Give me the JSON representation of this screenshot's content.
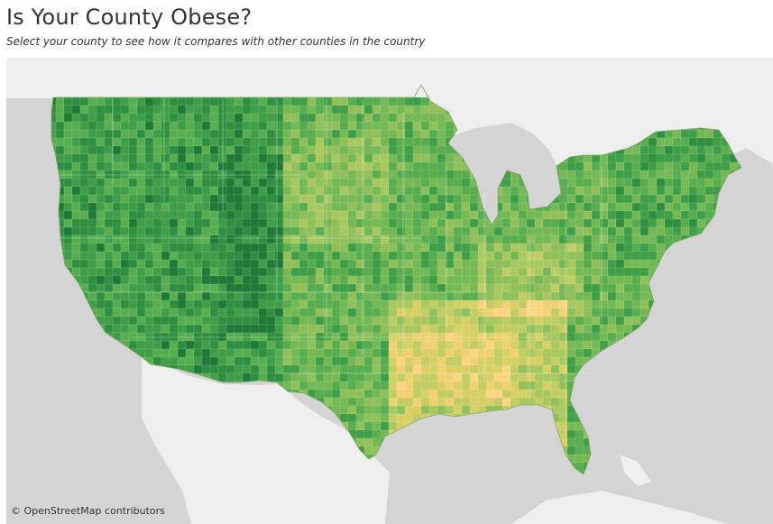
{
  "title": "Is Your County Obese?",
  "subtitle": "Select your county to see how it compares with other counties in the country",
  "attribution": "© OpenStreetMap contributors",
  "map": {
    "type": "choropleth",
    "region": "United States counties",
    "background_color": "#d4d4d4",
    "land_color": "#eeeeee",
    "water_color": "#d4d4d4",
    "palette": [
      "#1e7a36",
      "#2e8f41",
      "#3f9e48",
      "#58ad4f",
      "#74b955",
      "#8fc05a",
      "#a9c85f",
      "#c2cd62",
      "#d7d064",
      "#f0d070",
      "#fdd581"
    ]
  }
}
